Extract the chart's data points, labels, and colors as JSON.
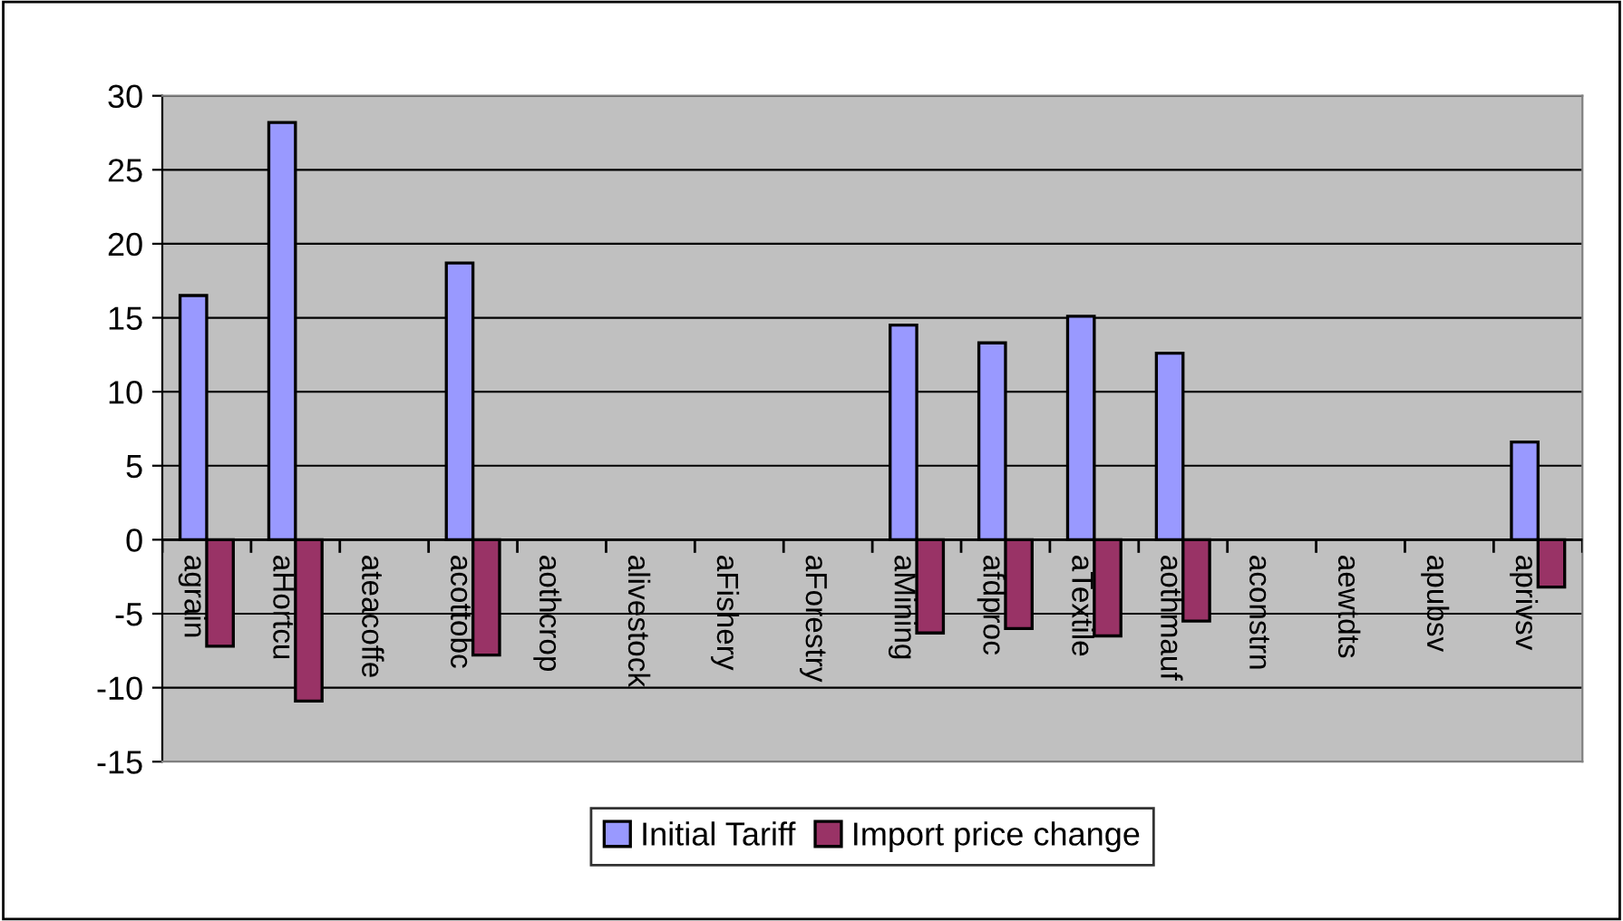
{
  "chart_data": {
    "type": "bar",
    "categories": [
      "agrain",
      "aHortcu",
      "ateacoffe",
      "acottobc",
      "aothcrop",
      "alivestock",
      "aFishery",
      "aForestry",
      "aMining",
      "afdproc",
      "aTextile",
      "aothmauf",
      "aconstrn",
      "aewtdts",
      "apubsv",
      "aprivsv"
    ],
    "series": [
      {
        "name": "Initial Tariff",
        "color": "#9999ff",
        "values": [
          16.5,
          28.2,
          null,
          18.7,
          null,
          null,
          null,
          null,
          14.5,
          13.3,
          15.1,
          12.6,
          null,
          null,
          null,
          6.6
        ]
      },
      {
        "name": "Import price change",
        "color": "#993366",
        "values": [
          -7.2,
          -10.9,
          null,
          -7.8,
          null,
          null,
          null,
          null,
          -6.3,
          -6.0,
          -6.5,
          -5.5,
          null,
          null,
          null,
          -3.2
        ]
      }
    ],
    "ylim": [
      -15,
      30
    ],
    "yticks": [
      -15,
      -10,
      -5,
      0,
      5,
      10,
      15,
      20,
      25,
      30
    ],
    "grid": "y",
    "legend": "bottom"
  }
}
